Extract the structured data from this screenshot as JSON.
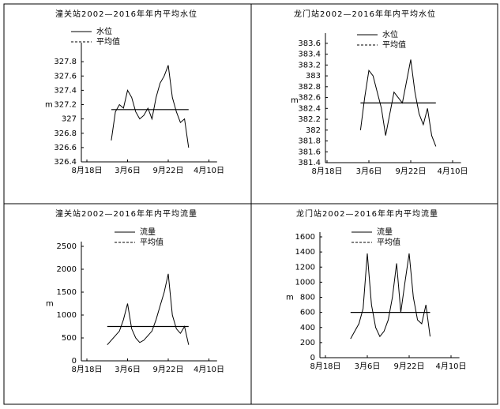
{
  "chart_data": [
    {
      "type": "line",
      "title": "潼关站2002—2016年年内平均水位",
      "y_label": "m",
      "categories": [
        "8月18日",
        null,
        null,
        null,
        null,
        null,
        null,
        null,
        null,
        null,
        "3月6日",
        null,
        null,
        null,
        null,
        null,
        null,
        null,
        null,
        null,
        "9月22日",
        null,
        null,
        null,
        null,
        null,
        null,
        null,
        null,
        null,
        "4月10日"
      ],
      "ylim": [
        326.4,
        328
      ],
      "yticks": [
        326.4,
        326.6,
        326.8,
        327,
        327.2,
        327.4,
        327.6,
        327.8
      ],
      "series": [
        {
          "name": "水位",
          "color": "#000000",
          "values": [
            null,
            null,
            null,
            null,
            null,
            null,
            326.7,
            327.1,
            327.2,
            327.15,
            327.4,
            327.3,
            327.1,
            327.0,
            327.05,
            327.15,
            327.0,
            327.3,
            327.5,
            327.6,
            327.75,
            327.3,
            327.1,
            326.95,
            327.0,
            326.6,
            null,
            null,
            null,
            null,
            null
          ]
        },
        {
          "name": "平均值",
          "color": "#000000",
          "values": [
            null,
            null,
            null,
            null,
            null,
            null,
            327.13,
            327.13,
            327.13,
            327.13,
            327.13,
            327.13,
            327.13,
            327.13,
            327.13,
            327.13,
            327.13,
            327.13,
            327.13,
            327.13,
            327.13,
            327.13,
            327.13,
            327.13,
            327.13,
            327.13,
            null,
            null,
            null,
            null,
            null
          ]
        }
      ]
    },
    {
      "type": "line",
      "title": "龙门站2002—2016年年内平均水位",
      "y_label": "m",
      "categories": [
        "8月18日",
        null,
        null,
        null,
        null,
        null,
        null,
        null,
        null,
        null,
        "3月6日",
        null,
        null,
        null,
        null,
        null,
        null,
        null,
        null,
        null,
        "9月22日",
        null,
        null,
        null,
        null,
        null,
        null,
        null,
        null,
        null,
        "4月10日"
      ],
      "ylim": [
        381.4,
        383.7
      ],
      "yticks": [
        381.4,
        381.6,
        381.8,
        382,
        382.2,
        382.4,
        382.6,
        382.8,
        383,
        383.2,
        383.4,
        383.6
      ],
      "series": [
        {
          "name": "水位",
          "color": "#000000",
          "values": [
            null,
            null,
            null,
            null,
            null,
            null,
            null,
            null,
            382.0,
            382.6,
            383.1,
            383.0,
            382.7,
            382.4,
            381.9,
            382.3,
            382.7,
            382.6,
            382.5,
            382.9,
            383.3,
            382.7,
            382.3,
            382.1,
            382.4,
            381.9,
            381.7,
            null,
            null,
            null,
            null
          ]
        },
        {
          "name": "平均值",
          "color": "#000000",
          "values": [
            null,
            null,
            null,
            null,
            null,
            null,
            null,
            null,
            382.5,
            382.5,
            382.5,
            382.5,
            382.5,
            382.5,
            382.5,
            382.5,
            382.5,
            382.5,
            382.5,
            382.5,
            382.5,
            382.5,
            382.5,
            382.5,
            382.5,
            382.5,
            382.5,
            null,
            null,
            null,
            null
          ]
        }
      ]
    },
    {
      "type": "line",
      "title": "潼关站2002—2016年年内平均流量",
      "y_label": "m",
      "categories": [
        "8月18日",
        null,
        null,
        null,
        null,
        null,
        null,
        null,
        null,
        null,
        "3月6日",
        null,
        null,
        null,
        null,
        null,
        null,
        null,
        null,
        null,
        "9月22日",
        null,
        null,
        null,
        null,
        null,
        null,
        null,
        null,
        null,
        "4月10日"
      ],
      "ylim": [
        0,
        2500
      ],
      "yticks": [
        0,
        500,
        1000,
        1500,
        2000,
        2500
      ],
      "series": [
        {
          "name": "流量",
          "color": "#000000",
          "values": [
            null,
            null,
            null,
            null,
            null,
            350,
            450,
            550,
            650,
            900,
            1250,
            700,
            500,
            400,
            450,
            550,
            650,
            900,
            1200,
            1500,
            1900,
            1000,
            700,
            600,
            750,
            350,
            null,
            null,
            null,
            null,
            null
          ]
        },
        {
          "name": "平均值",
          "color": "#000000",
          "values": [
            null,
            null,
            null,
            null,
            null,
            750,
            750,
            750,
            750,
            750,
            750,
            750,
            750,
            750,
            750,
            750,
            750,
            750,
            750,
            750,
            750,
            750,
            750,
            750,
            750,
            750,
            null,
            null,
            null,
            null,
            null
          ]
        }
      ]
    },
    {
      "type": "line",
      "title": "龙门站2002—2016年年内平均流量",
      "y_label": "m",
      "categories": [
        "8月18日",
        null,
        null,
        null,
        null,
        null,
        null,
        null,
        null,
        null,
        "3月6日",
        null,
        null,
        null,
        null,
        null,
        null,
        null,
        null,
        null,
        "9月22日",
        null,
        null,
        null,
        null,
        null,
        null,
        null,
        null,
        null,
        "4月10日"
      ],
      "ylim": [
        0,
        1600
      ],
      "yticks": [
        0,
        200,
        400,
        600,
        800,
        1000,
        1200,
        1400,
        1600
      ],
      "series": [
        {
          "name": "流量",
          "color": "#000000",
          "values": [
            null,
            null,
            null,
            null,
            null,
            null,
            250,
            350,
            450,
            650,
            1380,
            700,
            400,
            280,
            350,
            500,
            800,
            1250,
            600,
            1000,
            1380,
            800,
            500,
            450,
            700,
            280,
            null,
            null,
            null,
            null,
            null
          ]
        },
        {
          "name": "平均值",
          "color": "#000000",
          "values": [
            null,
            null,
            null,
            null,
            null,
            null,
            600,
            600,
            600,
            600,
            600,
            600,
            600,
            600,
            600,
            600,
            600,
            600,
            600,
            600,
            600,
            600,
            600,
            600,
            600,
            600,
            null,
            null,
            null,
            null,
            null
          ]
        }
      ]
    }
  ]
}
